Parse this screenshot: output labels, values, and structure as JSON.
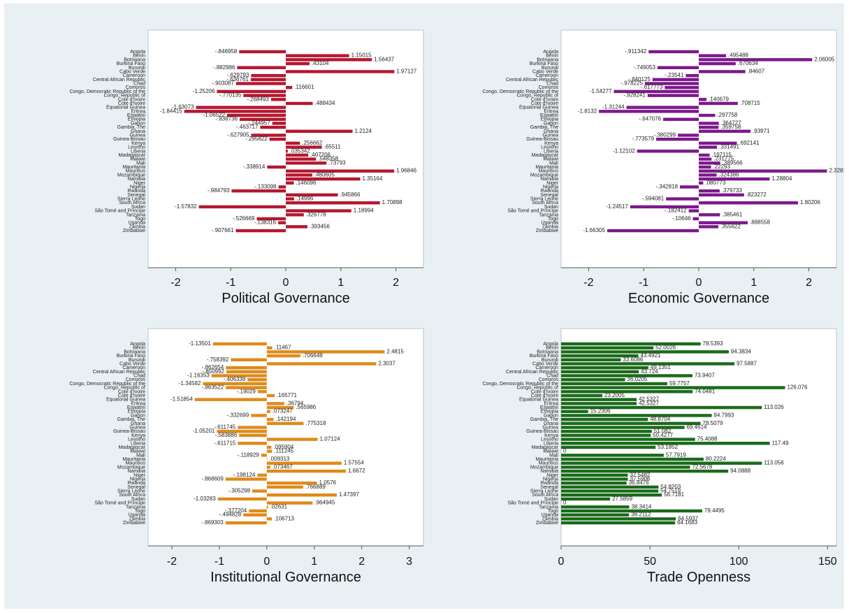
{
  "countries": [
    "Angola",
    "Benin",
    "Botswana",
    "Burkina Faso",
    "Burundi",
    "Cabo Verde",
    "Cameroon",
    "Central African Republic",
    "Chad",
    "Comoros",
    "Congo, Democratic Republic of the",
    "Congo, Republic of",
    "Cote d'Ivoire",
    "Cote d'Ivoire",
    "Equatorial Guinea",
    "Eritrea",
    "Eswatini",
    "Ethiopia",
    "Gabon",
    "Gambia, The",
    "Ghana",
    "Guinea",
    "Guinea-Bissau",
    "Kenya",
    "Lesotho",
    "Liberia",
    "Madagascar",
    "Malawi",
    "Mali",
    "Mauritania",
    "Mauritius",
    "Mozambique",
    "Namibia",
    "Niger",
    "Nigeria",
    "Rwanda",
    "Senegal",
    "Sierra Leone",
    "South Africa",
    "Sudan",
    "São Tomé and Príncipe",
    "Tanzania",
    "Togo",
    "Uganda",
    "Zambia",
    "Zimbabwe"
  ],
  "chart_data": [
    {
      "type": "bar",
      "orientation": "horizontal",
      "xlabel": "Political Governance",
      "xlim": [
        -2.5,
        2.5
      ],
      "xticks": [
        -2,
        -1,
        0,
        1,
        2
      ],
      "color": "#b5172f",
      "values": [
        -0.846958,
        1.15015,
        1.56437,
        0.43104,
        -0.882986,
        1.97127,
        -0.629793,
        -0.636761,
        -0.903087,
        0.116601,
        -1.25206,
        -0.770135,
        -0.268493,
        0.488434,
        -1.63073,
        -1.84415,
        -1.06522,
        -0.838736,
        -0.244957,
        -0.463717,
        1.2124,
        -0.627905,
        -0.295822,
        0.256662,
        0.65511,
        0.035342,
        0.407206,
        0.548358,
        0.73793,
        -0.338914,
        1.96846,
        0.480605,
        1.35164,
        0.146096,
        -0.133098,
        -0.984793,
        0.945866,
        0.14996,
        1.70898,
        -1.57832,
        1.18994,
        0.326778,
        -0.526669,
        -0.138316,
        0.393456,
        -0.907661
      ],
      "labels": [
        "-.846958",
        "1.15015",
        "1.56437",
        ".43104",
        "-.882986",
        "1.97127",
        "-.629793",
        "-.636761",
        "-.903087",
        ".116601",
        "-1.25206",
        "-.770135",
        "-.268493",
        ".488434",
        "-1.63073",
        "-1.84415",
        "-1.06522",
        "-.838736",
        "-.244957",
        "-.463717",
        "1.2124",
        "-.627905",
        "-.295822",
        ".256662",
        ".65511",
        ".035342",
        ".407206",
        ".548358",
        ".73793",
        "-.338914",
        "1.96846",
        ".480605",
        "1.35164",
        ".146096",
        "-.133098",
        "-.984793",
        ".945866",
        ".14996",
        "1.70898",
        "-1.57832",
        "1.18994",
        ".326778",
        "-.526669",
        "-.138316",
        ".393456",
        "-.907661"
      ]
    },
    {
      "type": "bar",
      "orientation": "horizontal",
      "xlabel": "Economic Governance",
      "xlim": [
        -2.5,
        2.5
      ],
      "xticks": [
        -2,
        -1,
        0,
        1,
        2
      ],
      "color": "#7b1a8a",
      "values": [
        -0.911342,
        0.495488,
        2.06005,
        0.670634,
        -0.749053,
        0.84607,
        -0.23541,
        -0.840125,
        -0.978225,
        -0.617773,
        -1.54277,
        -0.928241,
        0.140679,
        0.708715,
        -1.31244,
        -1.8132,
        0.297758,
        -0.647076,
        0.364727,
        0.359758,
        0.93971,
        -0.380299,
        -0.773579,
        0.692141,
        0.331491,
        -1.12102,
        0.197115,
        0.231775,
        0.389566,
        0.22293,
        2.32815,
        0.324386,
        1.28804,
        0.080773,
        -0.342818,
        0.379733,
        0.823272,
        -0.594081,
        1.80206,
        -1.24517,
        -0.182412,
        0.385461,
        -0.10646,
        0.888558,
        0.355622,
        -1.66305
      ],
      "labels": [
        "-.911342",
        ".495488",
        "2.06005",
        ".670634",
        "-.749053",
        ".84607",
        "-.23541",
        "-.840125",
        "-.978225",
        "-.617773",
        "-1.54277",
        "-.928241",
        ".140679",
        ".708715",
        "-1.31244",
        "-1.8132",
        ".297758",
        "-.647076",
        ".364727",
        ".359758",
        ".93971",
        "-.380299",
        "-.773579",
        ".692141",
        ".331491",
        "-1.12102",
        ".197115",
        ".231775",
        ".389566",
        ".22293",
        "2.32815",
        ".324386",
        "1.28804",
        ".080773",
        "-.342818",
        ".379733",
        ".823272",
        "-.594081",
        "1.80206",
        "-1.24517",
        "-.182412",
        ".385461",
        "-.10646",
        ".888558",
        ".355622",
        "-1.66305"
      ]
    },
    {
      "type": "bar",
      "orientation": "horizontal",
      "xlabel": "Institutional Governance",
      "xlim": [
        -2.5,
        3.3
      ],
      "xticks": [
        -2,
        -1,
        0,
        1,
        2,
        3
      ],
      "color": "#e08a1a",
      "values": [
        -1.13501,
        0.11467,
        2.4815,
        0.706648,
        -0.758392,
        2.3037,
        -0.862654,
        -0.850992,
        -1.16353,
        -0.406338,
        -1.34582,
        -0.863522,
        -0.19029,
        0.165771,
        -1.51854,
        0.36794,
        0.565986,
        0.073247,
        -0.332699,
        0.142194,
        0.775318,
        -0.611745,
        -1.05201,
        -0.583886,
        1.07124,
        -0.611715,
        0.095904,
        0.111245,
        -0.118929,
        0.009313,
        1.57554,
        0.073467,
        1.6672,
        -0.198124,
        -0.868609,
        1.0576,
        0.766889,
        -0.305298,
        1.47397,
        -1.03283,
        0.964945,
        0.02631,
        -0.377204,
        -0.494828,
        0.106713,
        -0.869303
      ],
      "labels": [
        "-1.13501",
        ".11467",
        "2.4815",
        ".706648",
        "-.758392",
        "2.3037",
        "-.862654",
        "-.850992",
        "-1.16353",
        "-.406338",
        "-1.34582",
        "-.863522",
        "-.19029",
        ".165771",
        "-1.51854",
        ".36794",
        ".565986",
        ".073247",
        "-.332699",
        ".142194",
        ".775318",
        "-.611745",
        "-1.05201",
        "-.583886",
        "1.07124",
        "-.611715",
        ".095904",
        ".111245",
        "-.118929",
        ".009313",
        "1.57554",
        ".073467",
        "1.6672",
        "-.198124",
        "-.868609",
        "1.0576",
        ".766889",
        "-.305298",
        "1.47397",
        "-1.03283",
        ".964945",
        ".02631",
        "-.377204",
        "-.494828",
        ".106713",
        "-.869303"
      ]
    },
    {
      "type": "bar",
      "orientation": "horizontal",
      "xlabel": "Trade  Openness",
      "xlim": [
        0,
        155
      ],
      "xticks": [
        0,
        50,
        100,
        150
      ],
      "color": "#1a6b1a",
      "values": [
        78.5393,
        52.0026,
        94.3834,
        43.4921,
        33.6086,
        97.5887,
        49.1351,
        43.724,
        73.9407,
        36.0205,
        59.7757,
        126.076,
        74.0481,
        23.2005,
        42.5327,
        42.5327,
        113.026,
        15.2306,
        84.7993,
        48.8704,
        78.5079,
        69.4614,
        51.082,
        50.4277,
        75.4088,
        117.49,
        53.1852,
        0,
        57.7919,
        80.2224,
        113.056,
        72.5678,
        94.0888,
        37.5482,
        37.5906,
        36.8476,
        54.8203,
        54.7519,
        56.7181,
        27.5859,
        0,
        38.3414,
        79.4495,
        38.2112,
        64.5937,
        64.1683
      ],
      "labels": [
        "78.5393",
        "52.0026",
        "94.3834",
        "43.4921",
        "33.6086",
        "97.5887",
        "49.1351",
        "43.724",
        "73.9407",
        "36.0205",
        "59.7757",
        "126.076",
        "74.0481",
        "23.2005",
        "42.5327",
        "42.5327",
        "113.026",
        "15.2306",
        "84.7993",
        "48.8704",
        "78.5079",
        "69.4614",
        "51.082",
        "50.4277",
        "75.4088",
        "117.49",
        "53.1852",
        "0",
        "57.7919",
        "80.2224",
        "113.056",
        "72.5678",
        "94.0888",
        "37.5482",
        "37.5906",
        "36.8476",
        "54.8203",
        "54.7519",
        "56.7181",
        "27.5859",
        "0",
        "38.3414",
        "79.4495",
        "38.2112",
        "64.5937",
        "64.1683"
      ]
    }
  ]
}
